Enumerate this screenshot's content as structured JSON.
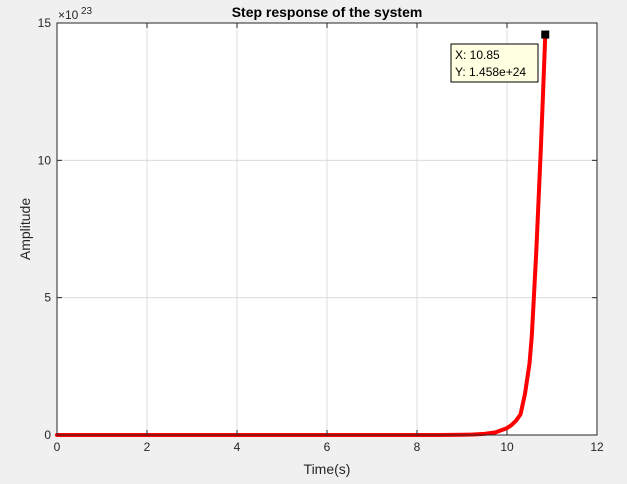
{
  "chart_data": {
    "type": "line",
    "title": "Step response of the system",
    "xlabel": "Time(s)",
    "ylabel": "Amplitude",
    "xlim": [
      0,
      12
    ],
    "ylim": [
      0,
      15
    ],
    "x_ticks": [
      "0",
      "2",
      "4",
      "6",
      "8",
      "10",
      "12"
    ],
    "y_ticks": [
      "0",
      "5",
      "10",
      "15"
    ],
    "y_exponent_base": "×10",
    "y_exponent_power": "23",
    "grid": true,
    "series": [
      {
        "color": "#ff0000",
        "x": [
          0,
          1,
          2,
          3,
          4,
          5,
          6,
          7,
          8,
          8.5,
          9,
          9.25,
          9.5,
          9.75,
          10.0,
          10.1,
          10.2,
          10.3,
          10.4,
          10.5,
          10.55,
          10.6,
          10.65,
          10.7,
          10.75,
          10.8,
          10.85
        ],
        "y": [
          0,
          0,
          0,
          0,
          0,
          0,
          0,
          0,
          0,
          0,
          0.01,
          0.02,
          0.04,
          0.1,
          0.25,
          0.36,
          0.52,
          0.75,
          1.5,
          2.6,
          3.6,
          5.1,
          6.7,
          8.5,
          10.4,
          12.4,
          14.58
        ]
      }
    ],
    "datatip": {
      "x_text": "X: 10.85",
      "y_text": "Y: 1.458e+24",
      "x": 10.85,
      "y": 14.58
    }
  }
}
